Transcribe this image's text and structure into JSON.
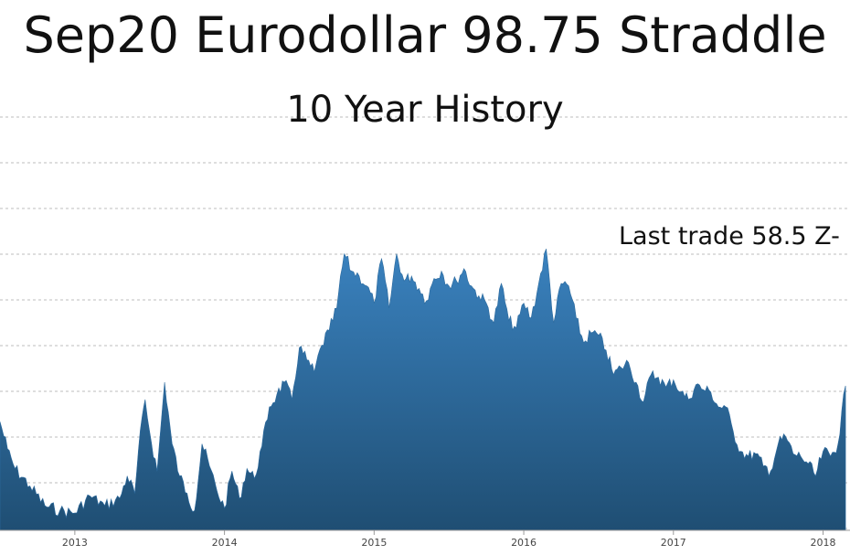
{
  "chart_data": {
    "type": "area",
    "title": "Sep20 Eurodollar 98.75 Straddle",
    "subtitle": "10 Year History",
    "annotation": "Last trade 58.5 Z-",
    "xlabel": "",
    "ylabel": "",
    "x_tick_labels": [
      "2013",
      "2014",
      "2015",
      "2016",
      "2017",
      "2018"
    ],
    "grid": true,
    "fill_color_top": "#3a82bf",
    "fill_color_bottom": "#1f4e73",
    "series": [
      {
        "x": [
          2012.5,
          2012.55,
          2012.6,
          2012.7,
          2012.8,
          2012.9,
          2013.0,
          2013.1,
          2013.2,
          2013.3,
          2013.35,
          2013.4,
          2013.45,
          2013.47,
          2013.5,
          2013.55,
          2013.6,
          2013.65,
          2013.7,
          2013.75,
          2013.8,
          2013.85,
          2013.9,
          2013.95,
          2014.0,
          2014.05,
          2014.1,
          2014.15,
          2014.2,
          2014.25,
          2014.3,
          2014.35,
          2014.4,
          2014.45,
          2014.5,
          2014.55,
          2014.6,
          2014.65,
          2014.7,
          2014.75,
          2014.8,
          2014.85,
          2014.9,
          2014.95,
          2015.0,
          2015.05,
          2015.1,
          2015.15,
          2015.2,
          2015.25,
          2015.3,
          2015.35,
          2015.4,
          2015.45,
          2015.5,
          2015.55,
          2015.6,
          2015.65,
          2015.7,
          2015.75,
          2015.8,
          2015.85,
          2015.9,
          2015.95,
          2016.0,
          2016.05,
          2016.1,
          2016.15,
          2016.2,
          2016.25,
          2016.3,
          2016.35,
          2016.4,
          2016.45,
          2016.5,
          2016.55,
          2016.6,
          2016.65,
          2016.7,
          2016.75,
          2016.8,
          2016.85,
          2016.9,
          2016.95,
          2017.0,
          2017.05,
          2017.1,
          2017.15,
          2017.2,
          2017.25,
          2017.3,
          2017.35,
          2017.4,
          2017.45,
          2017.5,
          2017.55,
          2017.6,
          2017.65,
          2017.7,
          2017.75,
          2017.8,
          2017.85,
          2017.9,
          2017.95,
          2018.0,
          2018.05,
          2018.1,
          2018.15
        ],
        "y": [
          44,
          33,
          25,
          18,
          10,
          8,
          7,
          14,
          10,
          13,
          22,
          15,
          46,
          53,
          40,
          24,
          60,
          35,
          22,
          15,
          8,
          35,
          26,
          16,
          9,
          24,
          13,
          25,
          21,
          34,
          50,
          55,
          60,
          53,
          74,
          69,
          64,
          75,
          81,
          90,
          112,
          105,
          103,
          99,
          92,
          110,
          90,
          112,
          101,
          103,
          98,
          93,
          102,
          105,
          99,
          101,
          106,
          99,
          95,
          92,
          84,
          100,
          85,
          82,
          92,
          86,
          100,
          114,
          84,
          100,
          99,
          86,
          76,
          80,
          79,
          73,
          63,
          66,
          68,
          60,
          52,
          63,
          62,
          58,
          61,
          56,
          53,
          59,
          57,
          56,
          50,
          50,
          40,
          32,
          30,
          31,
          26,
          24,
          35,
          38,
          31,
          30,
          27,
          22,
          32,
          30,
          35,
          58.5
        ]
      }
    ]
  }
}
